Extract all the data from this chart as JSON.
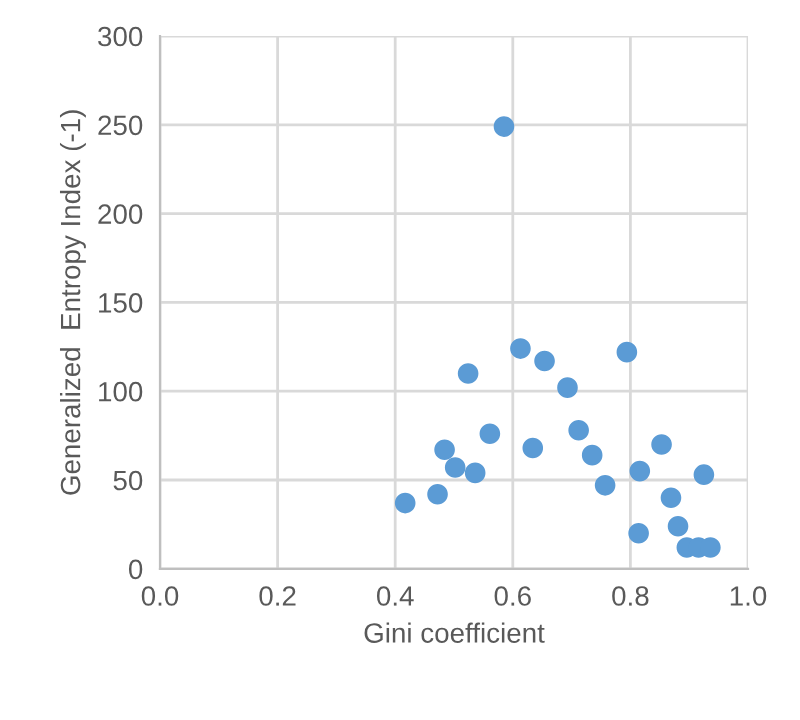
{
  "chart_data": {
    "type": "scatter",
    "xlabel": "Gini coefficient",
    "ylabel": "Generalized  Entropy Index (-1)",
    "x": [
      0.417,
      0.472,
      0.484,
      0.502,
      0.536,
      0.524,
      0.561,
      0.585,
      0.613,
      0.634,
      0.654,
      0.693,
      0.712,
      0.735,
      0.757,
      0.794,
      0.816,
      0.814,
      0.853,
      0.869,
      0.881,
      0.925,
      0.896,
      0.916,
      0.936
    ],
    "values": [
      37,
      42,
      67,
      57,
      54,
      110,
      76,
      249,
      124,
      68,
      117,
      102,
      78,
      64,
      47,
      122,
      55,
      20,
      70,
      40,
      24,
      53,
      12,
      12,
      12
    ],
    "color": "#5b9bd5",
    "marker": "circle",
    "xlim": [
      0,
      1
    ],
    "xticks": [
      {
        "value": 0,
        "label": "0.0"
      },
      {
        "value": 0.2,
        "label": "0.2"
      },
      {
        "value": 0.4,
        "label": "0.4"
      },
      {
        "value": 0.6,
        "label": "0.6"
      },
      {
        "value": 0.8,
        "label": "0.8"
      },
      {
        "value": 1,
        "label": "1.0"
      }
    ],
    "ylim": [
      0,
      300
    ],
    "yticks": [
      0,
      50,
      100,
      150,
      200,
      250,
      300
    ],
    "grid": true
  }
}
